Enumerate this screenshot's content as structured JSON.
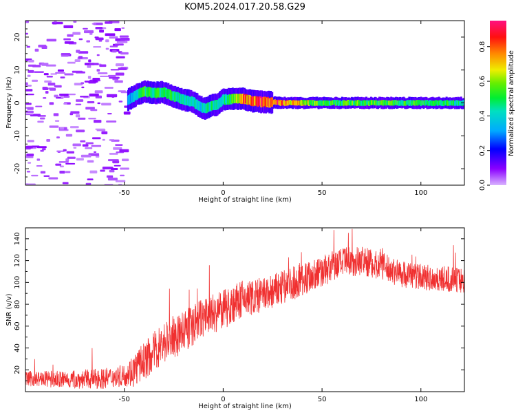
{
  "figure_title": "KOM5.2024.017.20.58.G29",
  "colors": {
    "snr_line": "#f03030",
    "axis": "#000000",
    "background": "#ffffff"
  },
  "chart_data": [
    {
      "type": "heatmap",
      "title": "",
      "xlabel": "Height of straight line (km)",
      "ylabel": "Frequency (Hz)",
      "xlim": [
        -100,
        122
      ],
      "ylim": [
        -25,
        25
      ],
      "xticks": [
        -50,
        0,
        50,
        100
      ],
      "yticks": [
        -20,
        -10,
        0,
        10,
        20
      ],
      "colorbar": {
        "label": "Normalized spectral amplitude",
        "range": [
          0.0,
          0.95
        ],
        "ticks": [
          0.0,
          0.2,
          0.4,
          0.6,
          0.8
        ],
        "colormap": "rainbow (violet to red)"
      },
      "ridge": {
        "x": [
          -48,
          -45,
          -40,
          -35,
          -30,
          -25,
          -20,
          -15,
          -12,
          -9,
          -6,
          -3,
          0,
          5,
          10,
          15,
          20,
          30,
          50,
          80,
          100,
          122
        ],
        "frequency": [
          1.0,
          2.0,
          3.5,
          3.0,
          3.2,
          2.0,
          1.0,
          0.3,
          -1.0,
          -1.8,
          -0.8,
          -0.5,
          1.0,
          1.2,
          1.3,
          0.5,
          0.3,
          0.0,
          0.0,
          0.0,
          0.0,
          0.0
        ],
        "amplitude": [
          0.3,
          0.4,
          0.55,
          0.5,
          0.55,
          0.5,
          0.45,
          0.5,
          0.4,
          0.45,
          0.5,
          0.45,
          0.45,
          0.6,
          0.85,
          0.9,
          0.95,
          0.9,
          0.55,
          0.6,
          0.55,
          0.5
        ]
      },
      "noise_region": {
        "x_range": [
          -100,
          -48
        ],
        "frequency_range": [
          -25,
          25
        ],
        "amplitude": 0.05
      }
    },
    {
      "type": "line",
      "title": "",
      "xlabel": "Height of straight line (km)",
      "ylabel": "SNR (v/v)",
      "xlim": [
        -100,
        122
      ],
      "ylim": [
        0,
        150
      ],
      "xticks": [
        -50,
        0,
        50,
        100
      ],
      "yticks": [
        20,
        40,
        60,
        80,
        100,
        120,
        140
      ],
      "trend": {
        "x": [
          -100,
          -80,
          -60,
          -50,
          -45,
          -40,
          -30,
          -20,
          -10,
          0,
          10,
          20,
          30,
          40,
          50,
          60,
          70,
          80,
          90,
          100,
          110,
          122
        ],
        "y": [
          12,
          11,
          12,
          15,
          20,
          28,
          45,
          55,
          68,
          75,
          85,
          88,
          95,
          103,
          110,
          118,
          120,
          115,
          108,
          105,
          103,
          102
        ]
      },
      "spread": {
        "x": [
          -100,
          -50,
          -45,
          -30,
          0,
          30,
          60,
          100,
          122
        ],
        "y": [
          7,
          10,
          16,
          20,
          18,
          16,
          14,
          12,
          12
        ]
      }
    }
  ]
}
